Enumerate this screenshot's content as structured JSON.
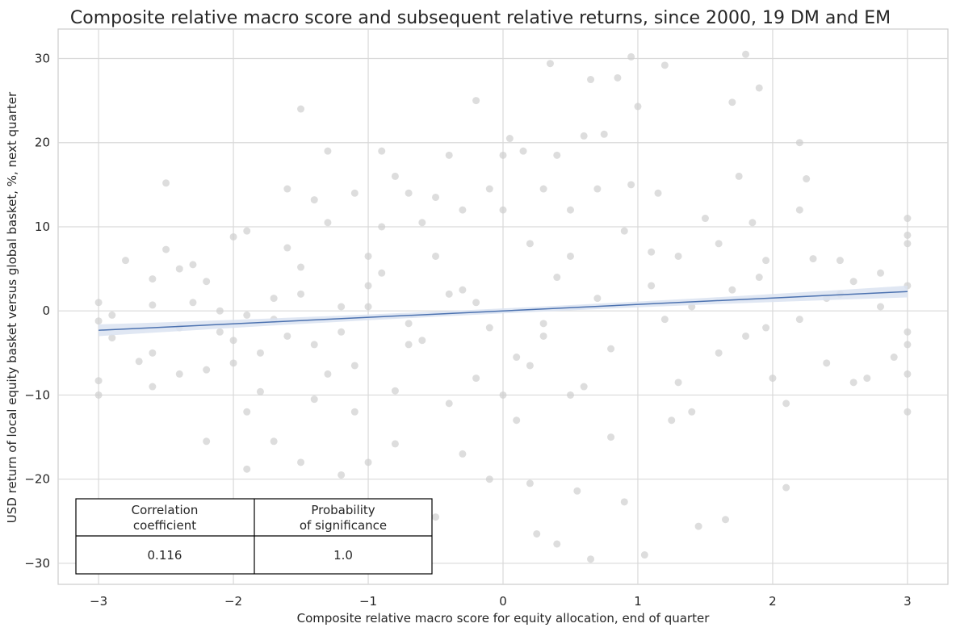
{
  "chart_data": {
    "type": "scatter",
    "title": "Composite relative macro score and subsequent relative returns, since 2000, 19 DM and EM",
    "xlabel": "Composite relative macro score for equity allocation, end of quarter",
    "ylabel": "USD return of local equity basket versus global basket, %, next quarter",
    "xlim": [
      -3.3,
      3.3
    ],
    "ylim": [
      -32.5,
      33.5
    ],
    "x_ticks": [
      -3,
      -2,
      -1,
      0,
      1,
      2,
      3
    ],
    "y_ticks": [
      -30,
      -20,
      -10,
      0,
      10,
      20,
      30
    ],
    "x_tick_labels": [
      "−3",
      "−2",
      "−1",
      "0",
      "1",
      "2",
      "3"
    ],
    "y_tick_labels": [
      "−30",
      "−20",
      "−10",
      "0",
      "10",
      "20",
      "30"
    ],
    "grid": true,
    "point_color": "#cfcfcf",
    "regression_line_color": "#4c72b0",
    "confidence_band_color": "#dbe3f1",
    "regression": {
      "x_start": -3.0,
      "y_start": -2.3,
      "x_end": 3.0,
      "y_end": 2.3,
      "band_halfwidth_edges": 0.7,
      "band_halfwidth_center": 0.3
    },
    "points": [
      [
        -3.0,
        1.0
      ],
      [
        -3.0,
        -1.2
      ],
      [
        -3.0,
        -8.3
      ],
      [
        -3.0,
        -10.0
      ],
      [
        -2.9,
        -3.2
      ],
      [
        -2.8,
        6.0
      ],
      [
        -2.7,
        -6.0
      ],
      [
        -2.6,
        -9.0
      ],
      [
        -2.6,
        0.7
      ],
      [
        -2.6,
        3.8
      ],
      [
        -2.5,
        15.2
      ],
      [
        -2.5,
        7.3
      ],
      [
        -2.4,
        -7.5
      ],
      [
        -2.4,
        -2.0
      ],
      [
        -2.3,
        5.5
      ],
      [
        -2.2,
        -15.5
      ],
      [
        -2.2,
        -7.0
      ],
      [
        -2.1,
        0.0
      ],
      [
        -2.1,
        -2.5
      ],
      [
        -2.0,
        -6.2
      ],
      [
        -2.0,
        8.8
      ],
      [
        -1.9,
        -18.8
      ],
      [
        -1.9,
        -12.0
      ],
      [
        -1.9,
        9.5
      ],
      [
        -1.8,
        -9.6
      ],
      [
        -1.8,
        -5.0
      ],
      [
        -1.7,
        1.5
      ],
      [
        -1.7,
        -15.5
      ],
      [
        -1.6,
        14.5
      ],
      [
        -1.6,
        -3.0
      ],
      [
        -1.5,
        24.0
      ],
      [
        -1.5,
        5.2
      ],
      [
        -1.5,
        -18.0
      ],
      [
        -1.4,
        13.2
      ],
      [
        -1.4,
        -4.0
      ],
      [
        -1.3,
        19.0
      ],
      [
        -1.3,
        10.5
      ],
      [
        -1.3,
        -7.5
      ],
      [
        -1.2,
        0.5
      ],
      [
        -1.2,
        -19.5
      ],
      [
        -1.1,
        14.0
      ],
      [
        -1.1,
        -12.0
      ],
      [
        -1.0,
        6.5
      ],
      [
        -1.0,
        -18.0
      ],
      [
        -1.0,
        3.0
      ],
      [
        -0.9,
        10.0
      ],
      [
        -0.9,
        19.0
      ],
      [
        -0.8,
        16.0
      ],
      [
        -0.8,
        -15.8
      ],
      [
        -0.7,
        14.0
      ],
      [
        -0.7,
        -4.0
      ],
      [
        -0.6,
        10.5
      ],
      [
        -0.5,
        13.5
      ],
      [
        -0.5,
        -24.5
      ],
      [
        -0.4,
        18.5
      ],
      [
        -0.4,
        2.0
      ],
      [
        -0.3,
        -17.0
      ],
      [
        -0.3,
        12.0
      ],
      [
        -0.2,
        25.0
      ],
      [
        -0.2,
        -8.0
      ],
      [
        -0.1,
        14.5
      ],
      [
        -0.1,
        -20.0
      ],
      [
        0.0,
        12.0
      ],
      [
        0.0,
        18.5
      ],
      [
        0.0,
        -10.0
      ],
      [
        0.05,
        20.5
      ],
      [
        0.1,
        -13.0
      ],
      [
        0.15,
        19.0
      ],
      [
        0.2,
        -20.5
      ],
      [
        0.2,
        8.0
      ],
      [
        0.25,
        -26.5
      ],
      [
        0.3,
        14.5
      ],
      [
        0.3,
        -3.0
      ],
      [
        0.35,
        29.4
      ],
      [
        0.4,
        18.5
      ],
      [
        0.4,
        -27.7
      ],
      [
        0.5,
        -10.0
      ],
      [
        0.5,
        12.0
      ],
      [
        0.55,
        -21.4
      ],
      [
        0.6,
        20.8
      ],
      [
        0.65,
        27.5
      ],
      [
        0.65,
        -29.5
      ],
      [
        0.7,
        14.5
      ],
      [
        0.75,
        21.0
      ],
      [
        0.8,
        -15.0
      ],
      [
        0.85,
        27.7
      ],
      [
        0.9,
        -22.7
      ],
      [
        0.95,
        15.0
      ],
      [
        0.95,
        30.2
      ],
      [
        1.0,
        24.3
      ],
      [
        1.05,
        -29.0
      ],
      [
        1.1,
        7.0
      ],
      [
        1.15,
        14.0
      ],
      [
        1.2,
        29.2
      ],
      [
        1.25,
        -13.0
      ],
      [
        1.3,
        6.5
      ],
      [
        1.4,
        -12.0
      ],
      [
        1.45,
        -25.6
      ],
      [
        1.5,
        11.0
      ],
      [
        1.6,
        -5.0
      ],
      [
        1.65,
        -24.8
      ],
      [
        1.7,
        24.8
      ],
      [
        1.75,
        16.0
      ],
      [
        1.8,
        30.5
      ],
      [
        1.85,
        10.5
      ],
      [
        1.9,
        26.5
      ],
      [
        1.95,
        6.0
      ],
      [
        2.0,
        -8.0
      ],
      [
        2.1,
        -11.0
      ],
      [
        2.1,
        -21.0
      ],
      [
        2.2,
        20.0
      ],
      [
        2.2,
        12.0
      ],
      [
        2.25,
        15.7
      ],
      [
        2.3,
        6.2
      ],
      [
        2.4,
        -6.2
      ],
      [
        2.5,
        6.0
      ],
      [
        2.5,
        2.0
      ],
      [
        2.6,
        -8.5
      ],
      [
        2.7,
        -8.0
      ],
      [
        2.8,
        4.5
      ],
      [
        2.9,
        -5.5
      ],
      [
        3.0,
        11.0
      ],
      [
        3.0,
        9.0
      ],
      [
        3.0,
        8.0
      ],
      [
        3.0,
        3.0
      ],
      [
        3.0,
        -2.5
      ],
      [
        3.0,
        -4.0
      ],
      [
        3.0,
        -7.5
      ],
      [
        3.0,
        -12.0
      ],
      [
        1.95,
        -2.0
      ],
      [
        2.4,
        1.5
      ],
      [
        -2.3,
        1.0
      ],
      [
        -2.0,
        -3.5
      ],
      [
        -1.7,
        -1.0
      ],
      [
        -1.2,
        -2.5
      ],
      [
        -0.7,
        -1.5
      ],
      [
        -0.3,
        2.5
      ],
      [
        0.3,
        -1.5
      ],
      [
        0.7,
        1.5
      ],
      [
        1.2,
        -1.0
      ],
      [
        1.7,
        2.5
      ],
      [
        2.2,
        -1.0
      ],
      [
        -2.6,
        -5.0
      ],
      [
        -2.2,
        3.5
      ],
      [
        -1.9,
        -0.5
      ],
      [
        -1.5,
        2.0
      ],
      [
        -1.1,
        -6.5
      ],
      [
        -0.9,
        4.5
      ],
      [
        -0.6,
        -3.5
      ],
      [
        -0.2,
        1.0
      ],
      [
        0.1,
        -5.5
      ],
      [
        0.4,
        4.0
      ],
      [
        0.8,
        -4.5
      ],
      [
        1.1,
        3.0
      ],
      [
        1.4,
        0.5
      ],
      [
        1.8,
        -3.0
      ],
      [
        2.6,
        3.5
      ],
      [
        2.8,
        0.5
      ],
      [
        -2.9,
        -0.5
      ],
      [
        -0.4,
        -11.0
      ],
      [
        0.6,
        -9.0
      ],
      [
        1.6,
        8.0
      ],
      [
        -1.6,
        7.5
      ],
      [
        -0.8,
        -9.5
      ],
      [
        0.9,
        9.5
      ],
      [
        -1.4,
        -10.5
      ],
      [
        -0.5,
        6.5
      ],
      [
        0.2,
        -6.5
      ],
      [
        1.3,
        -8.5
      ],
      [
        1.9,
        4.0
      ],
      [
        -2.4,
        5.0
      ],
      [
        -1.0,
        0.5
      ],
      [
        -0.1,
        -2.0
      ],
      [
        0.5,
        6.5
      ]
    ],
    "stats_table": {
      "headers": [
        "Correlation\ncoefficient",
        "Probability\nof significance"
      ],
      "values": [
        "0.116",
        "1.0"
      ]
    }
  }
}
